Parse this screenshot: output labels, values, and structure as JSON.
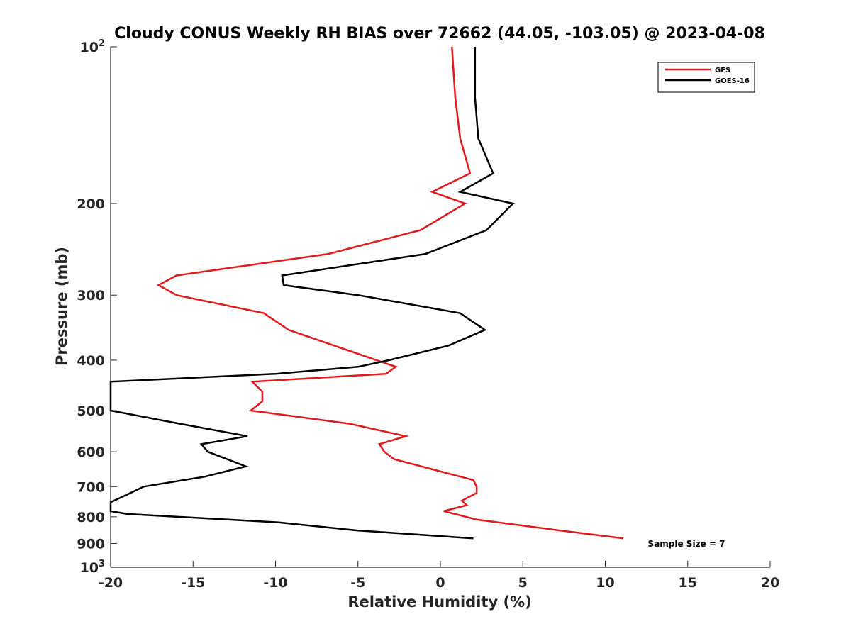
{
  "chart_data": {
    "type": "line",
    "title": "Cloudy CONUS Weekly RH BIAS over 72662 (44.05, -103.05) @ 2023-04-08",
    "xlabel": "Relative Humidity (%)",
    "ylabel": "Pressure (mb)",
    "xlim": [
      -20,
      20
    ],
    "ylim": [
      100,
      1000
    ],
    "y_scale": "log",
    "y_reversed": true,
    "grid": false,
    "legend_position": "top-right",
    "x_ticks": [
      "-20",
      "-15",
      "-10",
      "-5",
      "0",
      "5",
      "10",
      "15",
      "20"
    ],
    "y_ticks": [
      {
        "value": 100,
        "label": "10",
        "sup": "2"
      },
      {
        "value": 200,
        "label": "200"
      },
      {
        "value": 300,
        "label": "300"
      },
      {
        "value": 400,
        "label": "400"
      },
      {
        "value": 500,
        "label": "500"
      },
      {
        "value": 600,
        "label": "600"
      },
      {
        "value": 700,
        "label": "700"
      },
      {
        "value": 800,
        "label": "800"
      },
      {
        "value": 900,
        "label": "900"
      },
      {
        "value": 1000,
        "label": "10",
        "sup": "3"
      }
    ],
    "annotation": "Sample Size = 7",
    "series": [
      {
        "name": "GFS",
        "color": "#e31a1c",
        "points": [
          [
            0.7,
            100
          ],
          [
            0.9,
            125
          ],
          [
            1.2,
            150
          ],
          [
            1.8,
            175
          ],
          [
            -0.5,
            190
          ],
          [
            1.5,
            200
          ],
          [
            -1.2,
            225
          ],
          [
            -6.8,
            250
          ],
          [
            -16.0,
            275
          ],
          [
            -17.1,
            287
          ],
          [
            -16.0,
            300
          ],
          [
            -10.7,
            325
          ],
          [
            -9.2,
            350
          ],
          [
            -2.7,
            412
          ],
          [
            -3.3,
            425
          ],
          [
            -11.4,
            440
          ],
          [
            -10.8,
            460
          ],
          [
            -10.8,
            480
          ],
          [
            -11.5,
            500
          ],
          [
            -5.5,
            530
          ],
          [
            -2.1,
            560
          ],
          [
            -3.7,
            580
          ],
          [
            -3.4,
            600
          ],
          [
            -2.8,
            620
          ],
          [
            2.0,
            680
          ],
          [
            2.2,
            700
          ],
          [
            2.2,
            720
          ],
          [
            1.3,
            745
          ],
          [
            1.6,
            760
          ],
          [
            0.2,
            780
          ],
          [
            2.2,
            810
          ],
          [
            7.3,
            850
          ],
          [
            11.1,
            880
          ]
        ]
      },
      {
        "name": "GOES-16",
        "color": "#000000",
        "points": [
          [
            2.1,
            100
          ],
          [
            2.1,
            125
          ],
          [
            2.3,
            150
          ],
          [
            3.2,
            175
          ],
          [
            1.2,
            190
          ],
          [
            4.4,
            200
          ],
          [
            2.8,
            225
          ],
          [
            -0.9,
            250
          ],
          [
            -9.6,
            275
          ],
          [
            -9.5,
            287
          ],
          [
            -5.0,
            300
          ],
          [
            1.2,
            325
          ],
          [
            2.7,
            350
          ],
          [
            0.5,
            375
          ],
          [
            -3.1,
            400
          ],
          [
            -5.0,
            412
          ],
          [
            -10.0,
            425
          ],
          [
            -20.0,
            440
          ],
          [
            -20.0,
            500
          ],
          [
            -15.8,
            530
          ],
          [
            -11.7,
            560
          ],
          [
            -14.5,
            580
          ],
          [
            -14.1,
            600
          ],
          [
            -11.8,
            640
          ],
          [
            -14.3,
            670
          ],
          [
            -18.0,
            700
          ],
          [
            -19.0,
            725
          ],
          [
            -20.0,
            750
          ],
          [
            -20.0,
            780
          ],
          [
            -19.0,
            790
          ],
          [
            -9.8,
            820
          ],
          [
            -5.0,
            850
          ],
          [
            2.0,
            880
          ]
        ]
      }
    ]
  }
}
